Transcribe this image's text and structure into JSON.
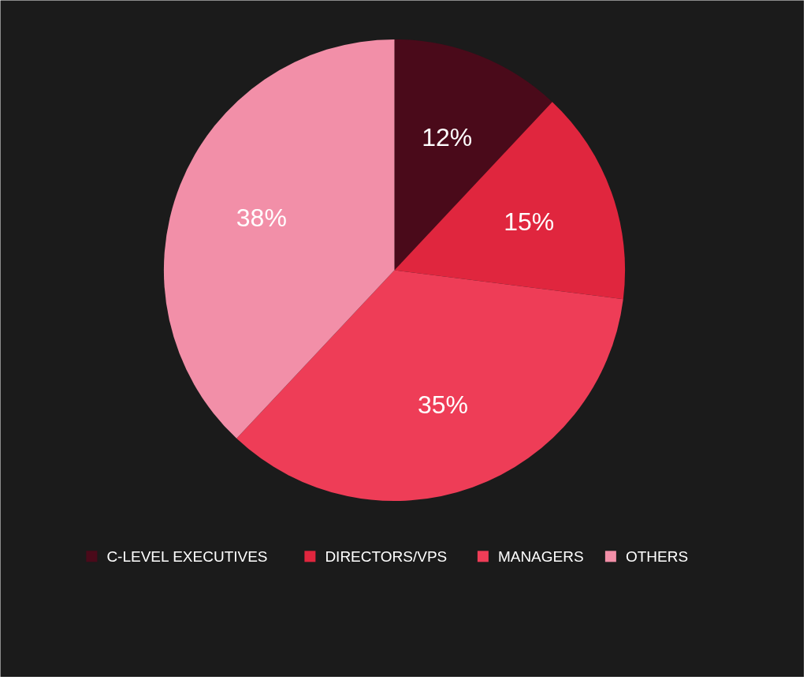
{
  "chart_data": {
    "type": "pie",
    "categories": [
      "C-LEVEL EXECUTIVES",
      "DIRECTORS/VPS",
      "MANAGERS",
      "OTHERS"
    ],
    "values": [
      12,
      15,
      35,
      38
    ],
    "value_labels": [
      "12%",
      "15%",
      "35%",
      "38%"
    ],
    "colors": [
      "#4a0a1a",
      "#e0263e",
      "#ee3d57",
      "#f28fa8"
    ],
    "legend": "bottom"
  }
}
